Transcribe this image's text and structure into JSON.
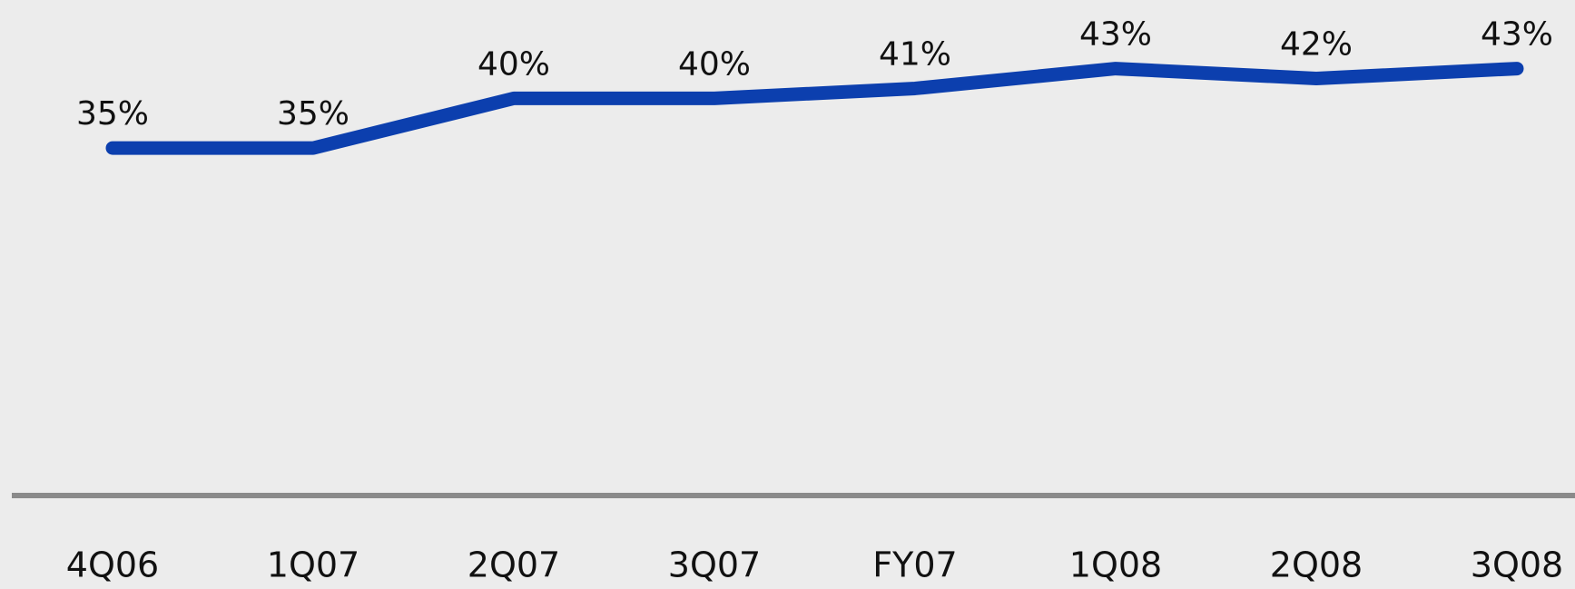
{
  "chart_data": {
    "type": "line",
    "categories": [
      "4Q06",
      "1Q07",
      "2Q07",
      "3Q07",
      "FY07",
      "1Q08",
      "2Q08",
      "3Q08"
    ],
    "series": [
      {
        "color": "#0c3fae",
        "values": [
          35,
          35,
          40,
          40,
          41,
          43,
          42,
          43
        ],
        "value_labels": [
          "35%",
          "35%",
          "40%",
          "40%",
          "41%",
          "43%",
          "42%",
          "43%"
        ]
      }
    ],
    "ylim": [
      0,
      50
    ]
  }
}
